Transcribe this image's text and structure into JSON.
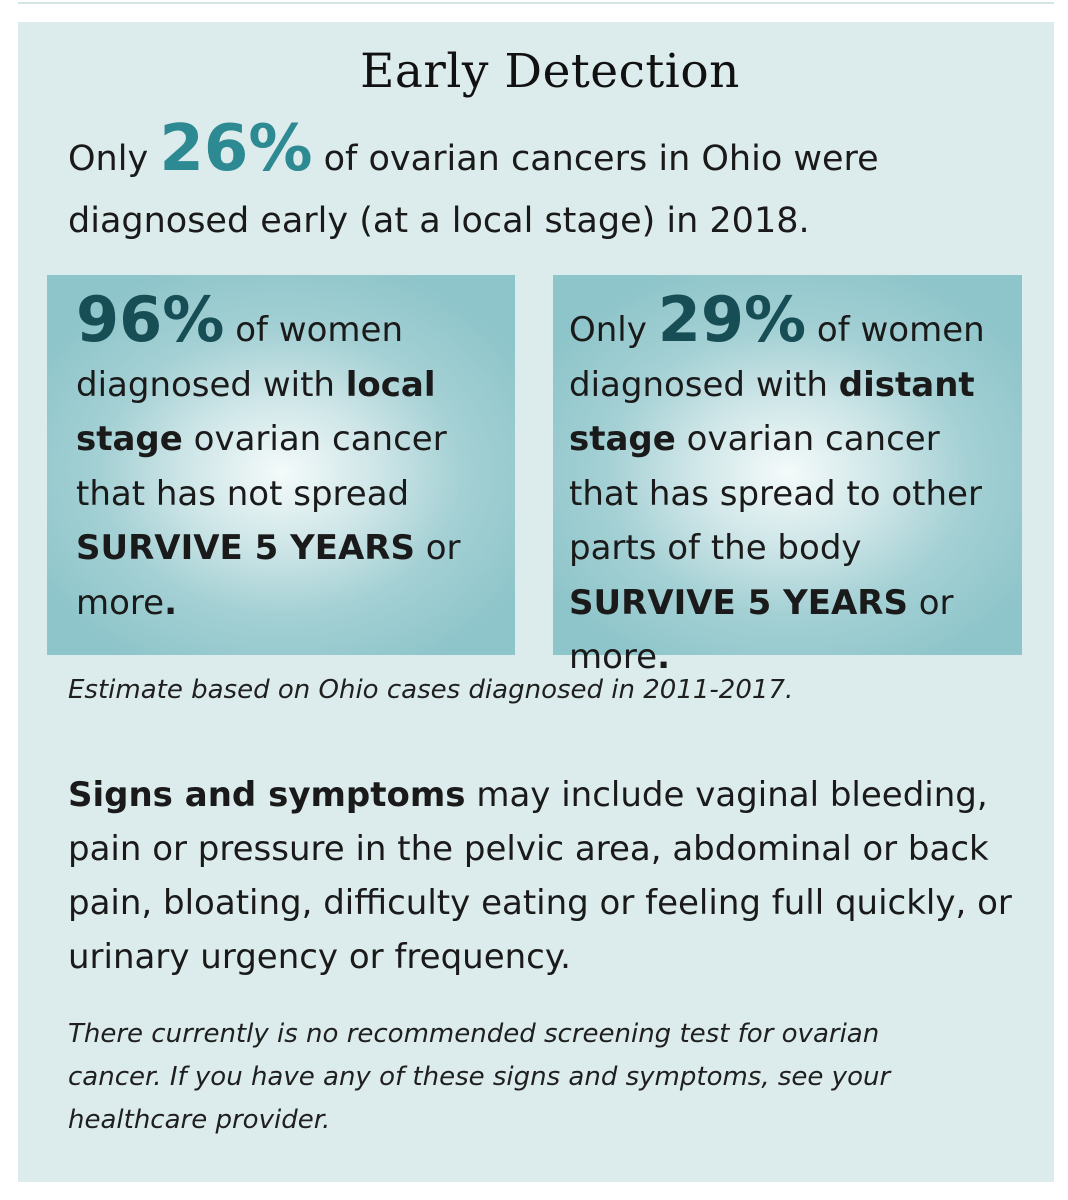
{
  "title": "Early Detection",
  "intro": {
    "pre": "Only",
    "percent": "26%",
    "post": "of ovarian cancers in Ohio were diagnosed early (at a local stage) in 2018."
  },
  "local_box": {
    "percent": "96%",
    "text_a": "of women diagnosed with",
    "bold_a": "local stage",
    "text_b": "ovarian cancer that has not spread",
    "bold_b": "SURVIVE 5 YEARS",
    "text_c": "or more",
    "period": "."
  },
  "distant_box": {
    "pre": "Only",
    "percent": "29%",
    "text_a": "of women diagnosed with",
    "bold_a": "distant stage",
    "text_b": "ovarian cancer that has spread to other parts of the body",
    "bold_b": "SURVIVE 5 YEARS",
    "text_c": "or more",
    "period": "."
  },
  "estimate_note": "Estimate based on Ohio cases diagnosed in 2011-2017.",
  "signs": {
    "bold": "Signs and symptoms",
    "text": "may include vaginal bleeding, pain or pressure in the pelvic area, abdominal or back pain, bloating, difficulty eating or feeling full quickly, or urinary urgency or frequency."
  },
  "screening_note": "There currently is no recommended screening test for ovarian cancer. If you have any of these signs and symptoms, see your healthcare provider.",
  "colors": {
    "panel_background": "#dcebeb",
    "teal_accent": "#2d8a92",
    "dark_teal": "#174e55",
    "box_teal": "#8ec5ca"
  }
}
